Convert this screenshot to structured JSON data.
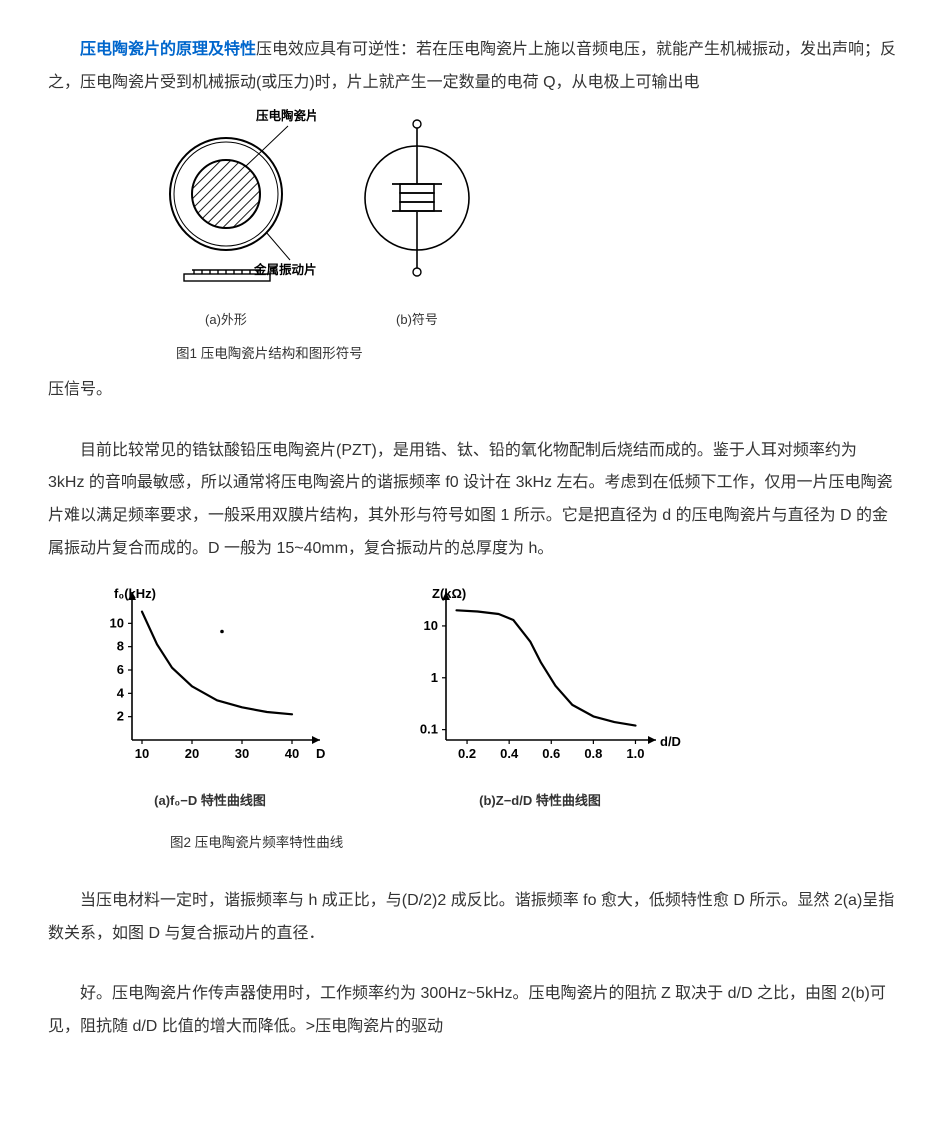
{
  "doc": {
    "text_color": "#333333",
    "link_color": "#0066cc",
    "bg_color": "#ffffff",
    "font_size_body": 16,
    "line_height": 2.05,
    "title": "压电陶瓷片的原理及特性",
    "p1": "压电效应具有可逆性：若在压电陶瓷片上施以音频电压，就能产生机械振动，发出声响；反之，压电陶瓷片受到机械振动(或压力)时，片上就产生一定数量的电荷 Q，从电极上可输出电",
    "p1_tail": "压信号。",
    "p2": "目前比较常见的锆钛酸铅压电陶瓷片(PZT)，是用锆、钛、铅的氧化物配制后烧结而成的。鉴于人耳对频率约为 3kHz 的音响最敏感，所以通常将压电陶瓷片的谐振频率 f0 设计在 3kHz 左右。考虑到在低频下工作，仅用一片压电陶瓷片难以满足频率要求，一般采用双膜片结构，其外形与符号如图 1 所示。它是把直径为 d 的压电陶瓷片与直径为 D 的金属振动片复合而成的。D 一般为 15~40mm，复合振动片的总厚度为 h。",
    "p3": "当压电材料一定时，谐振频率与 h 成正比，与(D/2)2 成反比。谐振频率 fo 愈大，低频特性愈 D 所示。显然 2(a)呈指数关系，如图 D 与复合振动片的直径．",
    "p4": "好。压电陶瓷片作传声器使用时，工作频率约为 300Hz~5kHz。压电陶瓷片的阻抗 Z 取决于 d/D 之比，由图 2(b)可见，阻抗随 d/D 比值的增大而降低。>压电陶瓷片的驱动"
  },
  "fig1": {
    "caption": "图1  压电陶瓷片结构和图形符号",
    "sub_a": "(a)外形",
    "sub_b": "(b)符号",
    "label_top": "压电陶瓷片",
    "label_bottom": "金属振动片",
    "stroke": "#000000",
    "hatch_color": "#000000",
    "bg": "#ffffff",
    "outer_radius": 56,
    "inner_radius": 34,
    "line_width": 2
  },
  "fig2": {
    "caption": "图2   压电陶瓷片频率特性曲线",
    "sub_a": "(a)f₀−D 特性曲线图",
    "sub_b": "(b)Z−d/D 特性曲线图",
    "stroke": "#000000",
    "axis_width": 1.6,
    "curve_width": 2.2,
    "chart_a": {
      "type": "line",
      "y_label": "f₀(kHz)",
      "x_label": "D",
      "x_ticks": [
        10,
        20,
        30,
        40
      ],
      "y_ticks": [
        2,
        4,
        6,
        8,
        10
      ],
      "xlim": [
        8,
        44
      ],
      "ylim": [
        0,
        12
      ],
      "points_x": [
        10,
        13,
        16,
        20,
        25,
        30,
        35,
        40
      ],
      "points_y": [
        11,
        8.2,
        6.2,
        4.6,
        3.4,
        2.8,
        2.4,
        2.2
      ],
      "label_fontsize": 13
    },
    "chart_b": {
      "type": "line-log",
      "y_label": "Z(kΩ)",
      "x_label": "d/D",
      "x_ticks": [
        0.2,
        0.4,
        0.6,
        0.8,
        1.0
      ],
      "y_tick_labels": [
        "0.1",
        "1",
        "10"
      ],
      "y_tick_vals": [
        0.1,
        1,
        10
      ],
      "xlim": [
        0.1,
        1.05
      ],
      "ylim_log": [
        -1.2,
        1.5
      ],
      "points_x": [
        0.15,
        0.25,
        0.35,
        0.42,
        0.5,
        0.55,
        0.62,
        0.7,
        0.8,
        0.9,
        1.0
      ],
      "points_y": [
        20,
        19,
        17,
        13,
        5,
        2,
        0.7,
        0.3,
        0.18,
        0.14,
        0.12
      ],
      "label_fontsize": 13
    }
  }
}
